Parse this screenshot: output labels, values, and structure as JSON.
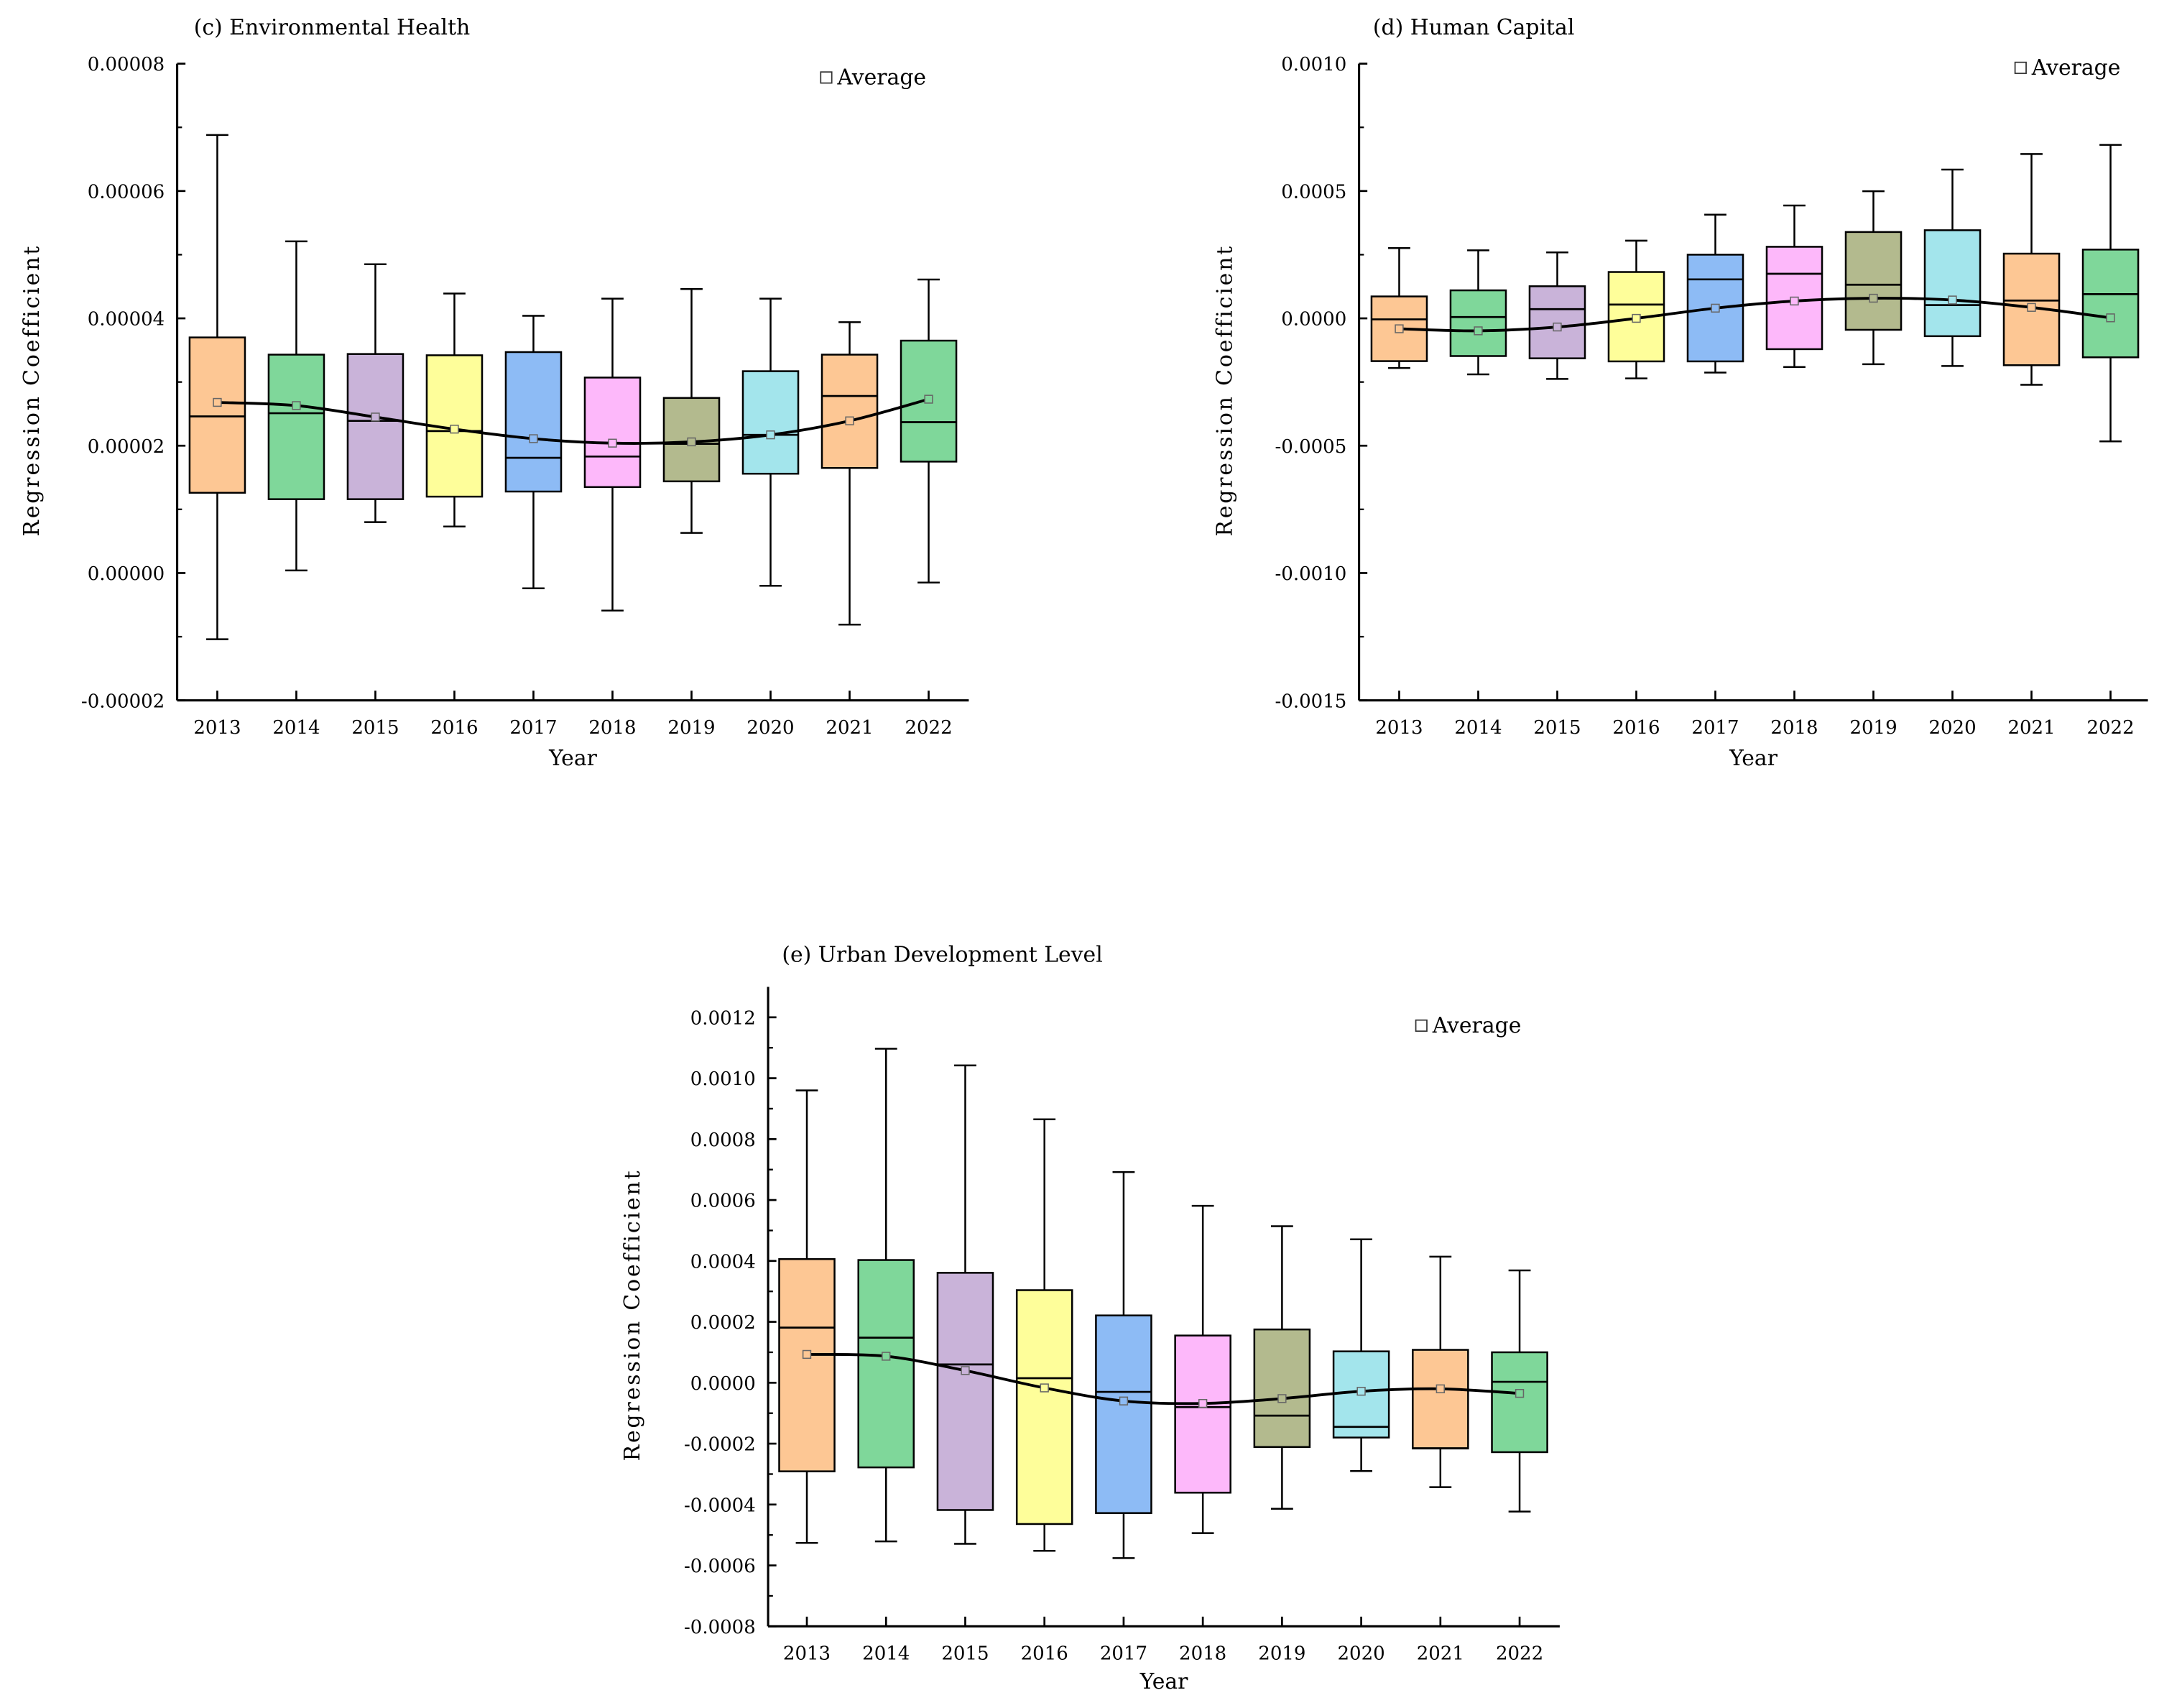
{
  "chart_data": [
    {
      "type": "box",
      "title": "(c) Environmental Health",
      "xlabel": "Year",
      "ylabel": "Regression Coefficient",
      "legend": "Average",
      "legend_position": "top-right",
      "ylim": [
        -2e-05,
        8e-05
      ],
      "yticks": [
        -2e-05,
        0,
        2e-05,
        4e-05,
        6e-05,
        8e-05
      ],
      "ytick_labels": [
        "-0.00002",
        "0.00000",
        "0.00002",
        "0.00004",
        "0.00006",
        "0.00008"
      ],
      "categories": [
        "2013",
        "2014",
        "2015",
        "2016",
        "2017",
        "2018",
        "2019",
        "2020",
        "2021",
        "2022"
      ],
      "colors": [
        "#FDC794",
        "#7FD79A",
        "#C9B3D9",
        "#FEFE9A",
        "#8DBBF5",
        "#FDB8FA",
        "#B3BA8E",
        "#A3E5EC",
        "#FDC794",
        "#7FD79A"
      ],
      "max": [
        6.88e-05,
        5.21e-05,
        4.85e-05,
        4.39e-05,
        4.04e-05,
        4.31e-05,
        4.46e-05,
        4.31e-05,
        3.94e-05,
        4.61e-05
      ],
      "q3": [
        3.7e-05,
        3.43e-05,
        3.44e-05,
        3.42e-05,
        3.47e-05,
        3.07e-05,
        2.75e-05,
        3.17e-05,
        3.43e-05,
        3.65e-05
      ],
      "median": [
        2.46e-05,
        2.51e-05,
        2.39e-05,
        2.23e-05,
        1.81e-05,
        1.83e-05,
        2.03e-05,
        2.17e-05,
        2.78e-05,
        2.37e-05
      ],
      "q1": [
        1.26e-05,
        1.16e-05,
        1.16e-05,
        1.2e-05,
        1.28e-05,
        1.35e-05,
        1.44e-05,
        1.56e-05,
        1.65e-05,
        1.75e-05
      ],
      "min": [
        -1.04e-05,
        4e-07,
        8e-06,
        7.3e-06,
        -2.4e-06,
        -5.9e-06,
        6.3e-06,
        -2e-06,
        -8.1e-06,
        -1.5e-06
      ],
      "mean": [
        2.68e-05,
        2.63e-05,
        2.45e-05,
        2.26e-05,
        2.11e-05,
        2.04e-05,
        2.06e-05,
        2.17e-05,
        2.39e-05,
        2.73e-05
      ]
    },
    {
      "type": "box",
      "title": "(d) Human Capital",
      "xlabel": "Year",
      "ylabel": "Regression Coefficient",
      "legend": "Average",
      "legend_position": "top-right",
      "ylim": [
        -0.0015,
        0.001
      ],
      "yticks": [
        -0.0015,
        -0.001,
        -0.0005,
        0,
        0.0005,
        0.001
      ],
      "ytick_labels": [
        "-0.0015",
        "-0.0010",
        "-0.0005",
        "0.0000",
        "0.0005",
        "0.0010"
      ],
      "categories": [
        "2013",
        "2014",
        "2015",
        "2016",
        "2017",
        "2018",
        "2019",
        "2020",
        "2021",
        "2022"
      ],
      "colors": [
        "#FDC794",
        "#7FD79A",
        "#C9B3D9",
        "#FEFE9A",
        "#8DBBF5",
        "#FDB8FA",
        "#B3BA8E",
        "#A3E5EC",
        "#FDC794",
        "#7FD79A"
      ],
      "max": [
        0.000276,
        0.000267,
        0.000259,
        0.000305,
        0.000407,
        0.000443,
        0.000499,
        0.000584,
        0.000645,
        0.000681
      ],
      "q3": [
        8.6e-05,
        0.00011,
        0.000126,
        0.000182,
        0.00025,
        0.000281,
        0.000339,
        0.000346,
        0.000254,
        0.00027
      ],
      "median": [
        -4e-06,
        5e-06,
        3.6e-05,
        5.4e-05,
        0.000153,
        0.000175,
        0.000132,
        5.2e-05,
        7e-05,
        9.5e-05
      ],
      "q1": [
        -0.000168,
        -0.000148,
        -0.000157,
        -0.000169,
        -0.000169,
        -0.000121,
        -4.5e-05,
        -7e-05,
        -0.000184,
        -0.000153
      ],
      "min": [
        -0.000195,
        -0.00022,
        -0.000238,
        -0.000236,
        -0.000213,
        -0.000191,
        -0.00018,
        -0.000187,
        -0.000261,
        -0.000483
      ],
      "mean": [
        -4.1e-05,
        -4.9e-05,
        -3.4e-05,
        0.0,
        4e-05,
        6.8e-05,
        7.9e-05,
        7.2e-05,
        4.3e-05,
        2e-06
      ]
    },
    {
      "type": "box",
      "title": "(e) Urban Development Level",
      "xlabel": "Year",
      "ylabel": "Regression Coefficient",
      "legend": "Average",
      "legend_position": "top-right",
      "ylim": [
        -0.0008,
        0.0013
      ],
      "yticks": [
        -0.0008,
        -0.0006,
        -0.0004,
        -0.0002,
        0,
        0.0002,
        0.0004,
        0.0006,
        0.0008,
        0.001,
        0.0012
      ],
      "ytick_labels": [
        "-0.0008",
        "-0.0006",
        "-0.0004",
        "-0.0002",
        "0.0000",
        "0.0002",
        "0.0004",
        "0.0006",
        "0.0008",
        "0.0010",
        "0.0012"
      ],
      "categories": [
        "2013",
        "2014",
        "2015",
        "2016",
        "2017",
        "2018",
        "2019",
        "2020",
        "2021",
        "2022"
      ],
      "colors": [
        "#FDC794",
        "#7FD79A",
        "#C9B3D9",
        "#FEFE9A",
        "#8DBBF5",
        "#FDB8FA",
        "#B3BA8E",
        "#A3E5EC",
        "#FDC794",
        "#7FD79A"
      ],
      "max": [
        0.00096,
        0.001097,
        0.001042,
        0.000865,
        0.000692,
        0.000581,
        0.000514,
        0.000471,
        0.000414,
        0.000369
      ],
      "q3": [
        0.000406,
        0.000403,
        0.000361,
        0.000304,
        0.000221,
        0.000155,
        0.000175,
        0.000103,
        0.000108,
        0.0001
      ],
      "median": [
        0.000181,
        0.000148,
        6e-05,
        1.5e-05,
        -3e-05,
        -8e-05,
        -0.000108,
        -0.000145,
        -0.000215,
        3e-06
      ],
      "q1": [
        -0.000291,
        -0.000278,
        -0.000418,
        -0.000464,
        -0.000428,
        -0.000361,
        -0.000211,
        -0.00018,
        -0.000216,
        -0.000228
      ],
      "min": [
        -0.000526,
        -0.000521,
        -0.000529,
        -0.000552,
        -0.000576,
        -0.000494,
        -0.000414,
        -0.00029,
        -0.000343,
        -0.000423
      ],
      "mean": [
        9.3e-05,
        8.7e-05,
        4e-05,
        -1.7e-05,
        -6e-05,
        -6.8e-05,
        -5.2e-05,
        -2.8e-05,
        -2e-05,
        -3.5e-05
      ]
    }
  ]
}
